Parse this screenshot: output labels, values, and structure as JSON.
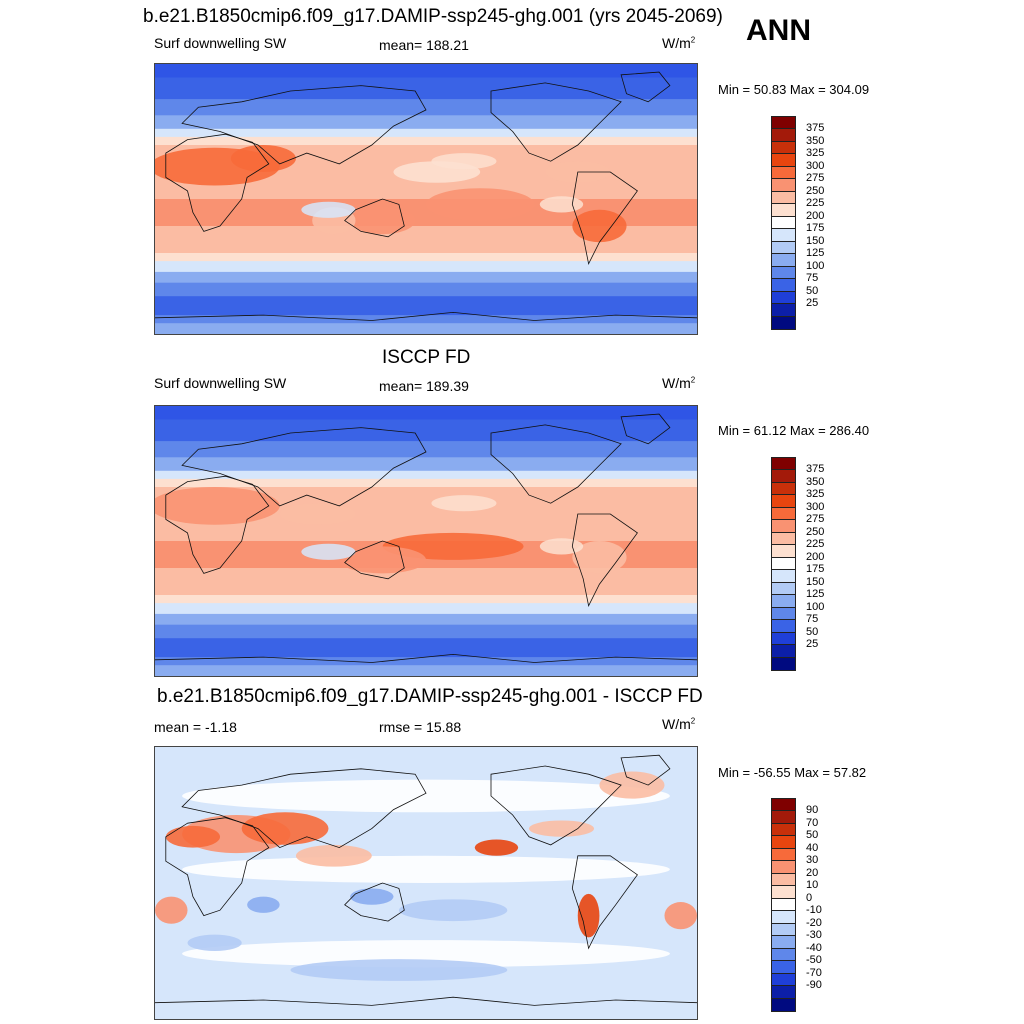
{
  "season": "ANN",
  "units_base": "W/m",
  "units_sup": "2",
  "panels": [
    {
      "title": "b.e21.B1850cmip6.f09_g17.DAMIP-ssp245-ghg.001 (yrs 2045-2069)",
      "left_label": "Surf downwelling SW",
      "center_label": "mean= 188.21",
      "minmax": "Min =  50.83 Max = 304.09",
      "kind": "abs",
      "variant": "model"
    },
    {
      "title": "ISCCP FD",
      "left_label": "Surf downwelling SW",
      "center_label": "mean= 189.39",
      "minmax": "Min =  61.12 Max = 286.40",
      "kind": "abs",
      "variant": "obs"
    },
    {
      "title": "b.e21.B1850cmip6.f09_g17.DAMIP-ssp245-ghg.001 - ISCCP FD",
      "left_label": "mean =  -1.18",
      "center_label": "rmse =  15.88",
      "minmax": "Min = -56.55 Max =  57.82",
      "kind": "diff",
      "variant": "diff"
    }
  ],
  "colorbars": {
    "abs": {
      "labels": [
        "375",
        "350",
        "325",
        "300",
        "275",
        "250",
        "225",
        "200",
        "175",
        "150",
        "125",
        "100",
        "75",
        "50",
        "25"
      ],
      "colors": [
        "#7f0000",
        "#a31a0a",
        "#c8300a",
        "#e8450f",
        "#f76a3a",
        "#f99272",
        "#fbbca3",
        "#fde0d0",
        "#ffffff",
        "#d6e6fb",
        "#b2cbf5",
        "#8aacf0",
        "#5f87ea",
        "#3a63e6",
        "#1f3fd8",
        "#0c1fa8",
        "#000a80"
      ]
    },
    "diff": {
      "labels": [
        "90",
        "70",
        "50",
        "40",
        "30",
        "20",
        "10",
        "0",
        "-10",
        "-20",
        "-30",
        "-40",
        "-50",
        "-70",
        "-90"
      ],
      "colors": [
        "#7f0000",
        "#a31a0a",
        "#c8300a",
        "#e8450f",
        "#f76a3a",
        "#f99272",
        "#fbbca3",
        "#fde0d0",
        "#ffffff",
        "#d6e6fb",
        "#b2cbf5",
        "#8aacf0",
        "#5f87ea",
        "#3a63e6",
        "#1f3fd8",
        "#0c1fa8",
        "#000a80"
      ]
    }
  }
}
